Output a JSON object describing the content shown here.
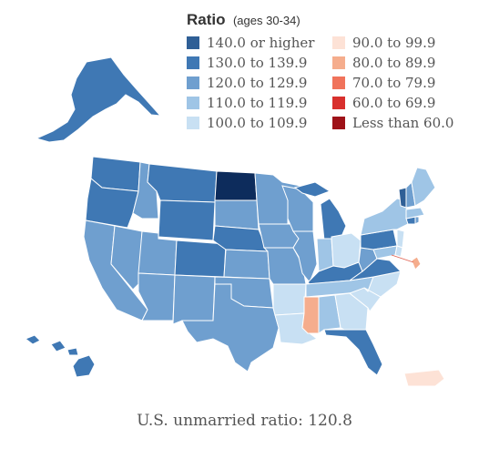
{
  "legend": {
    "title": "Ratio",
    "subtitle": "(ages 30-34)",
    "left_items": [
      {
        "label": "140.0 or higher",
        "color": "#2f5f96"
      },
      {
        "label": "130.0 to 139.9",
        "color": "#3f78b4"
      },
      {
        "label": "120.0 to 129.9",
        "color": "#6f9fcf"
      },
      {
        "label": "110.0 to 119.9",
        "color": "#9fc5e6"
      },
      {
        "label": "100.0 to 109.9",
        "color": "#c8e0f3"
      }
    ],
    "right_items": [
      {
        "label": "90.0 to 99.9",
        "color": "#fde2d6"
      },
      {
        "label": "80.0 to 89.9",
        "color": "#f5ad8d"
      },
      {
        "label": "70.0 to 79.9",
        "color": "#f0735b"
      },
      {
        "label": "60.0 to 69.9",
        "color": "#d8302d"
      },
      {
        "label": "Less than 60.0",
        "color": "#9e1218"
      }
    ]
  },
  "footer": {
    "text": "U.S. unmarried ratio: 120.8"
  }
}
